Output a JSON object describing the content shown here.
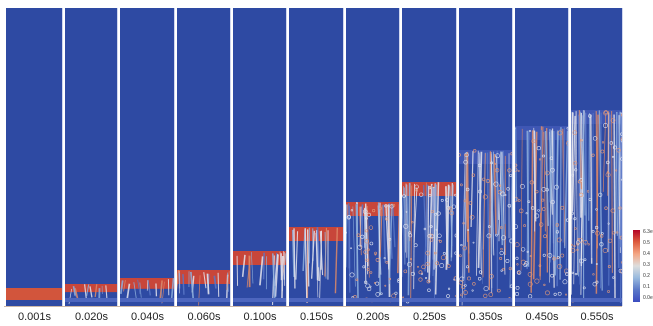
{
  "frames": [
    {
      "time": "0.001s"
    },
    {
      "time": "0.020s"
    },
    {
      "time": "0.040s"
    },
    {
      "time": "0.060s"
    },
    {
      "time": "0.100s"
    },
    {
      "time": "0.150s"
    },
    {
      "time": "0.200s"
    },
    {
      "time": "0.250s"
    },
    {
      "time": "0.350s"
    },
    {
      "time": "0.450s"
    },
    {
      "time": "0.550s"
    }
  ],
  "colorbar": {
    "ticks": [
      "6.3e",
      "0.5",
      "0.4",
      "0.3",
      "0.2",
      "0.1",
      "0.0e"
    ],
    "colors": {
      "high": "#b40426",
      "mid": "#dddddd",
      "low": "#3b4cc0",
      "background": "#2e4aa3"
    }
  }
}
